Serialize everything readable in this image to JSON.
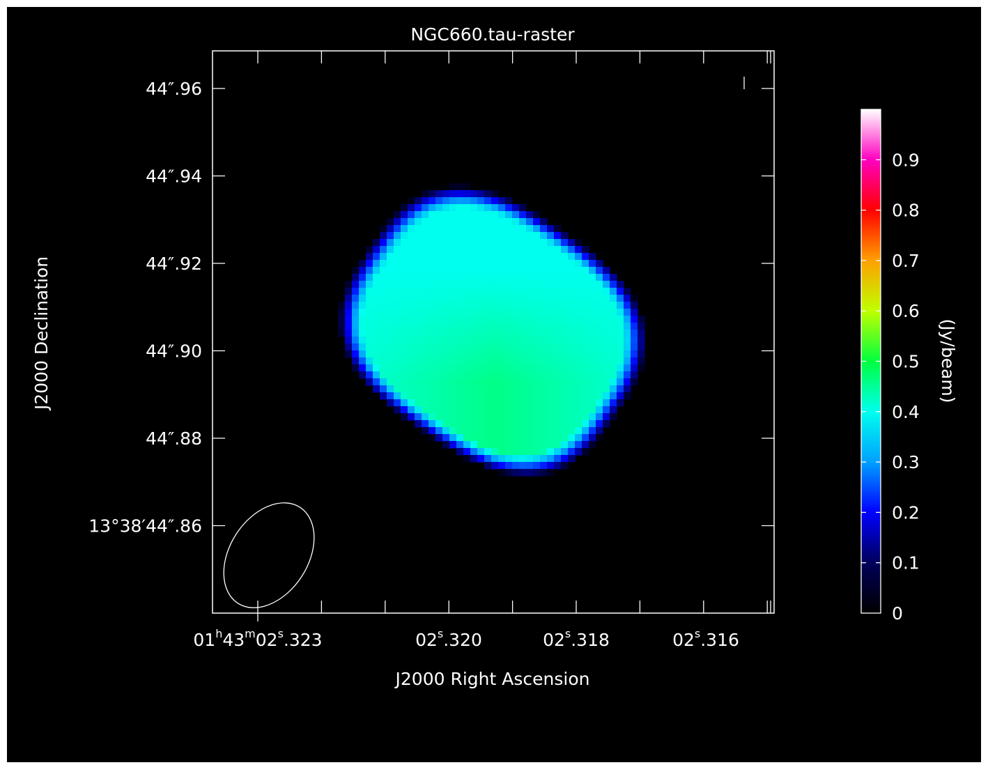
{
  "chart_data": {
    "type": "heatmap",
    "title": "NGC660.tau-raster",
    "xlabel": "J2000 Right Ascension",
    "ylabel": "J2000 Declination",
    "colorbar_label": "(Jy/beam)",
    "x_ticks": [
      {
        "h": "01",
        "m": "43",
        "s": "02",
        "frac": ".323",
        "full": true
      },
      {
        "s": "02",
        "frac": ".320",
        "full": false
      },
      {
        "s": "02",
        "frac": ".318",
        "full": false
      },
      {
        "s": "02",
        "frac": ".316",
        "full": false
      }
    ],
    "y_ticks": [
      {
        "label": "44″.96",
        "value": 44.96
      },
      {
        "label": "44″.94",
        "value": 44.94
      },
      {
        "label": "44″.92",
        "value": 44.92
      },
      {
        "label": "44″.90",
        "value": 44.9
      },
      {
        "label": "44″.88",
        "value": 44.88
      },
      {
        "label": "13°38′44″.86",
        "value": 44.86
      }
    ],
    "colorbar_ticks": [
      "0",
      "0.1",
      "0.2",
      "0.3",
      "0.4",
      "0.5",
      "0.6",
      "0.7",
      "0.8",
      "0.9"
    ],
    "colorbar_range": [
      0,
      1
    ],
    "colormap": [
      "#000000",
      "#00005a",
      "#0000ff",
      "#00a0ff",
      "#00ffee",
      "#00ff40",
      "#c0ff00",
      "#ffa000",
      "#ff0000",
      "#ff00c0",
      "#ffffff"
    ],
    "beam": {
      "shape": "ellipse",
      "color": "#ffffff"
    },
    "background_color": "#000000",
    "axes_color": "#ffffff"
  }
}
